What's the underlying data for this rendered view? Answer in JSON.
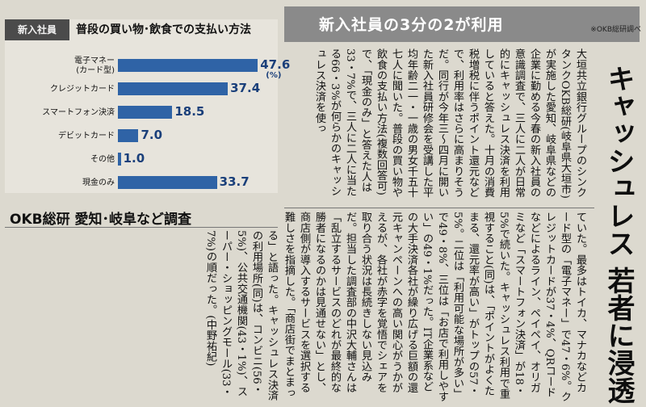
{
  "chart": {
    "tag": "新入社員",
    "title": "普段の買い物･飲食での支払い方法",
    "source": "※OKB総研調べ"
  },
  "chart_data": {
    "type": "bar",
    "orientation": "horizontal",
    "categories": [
      "電子マネー(カード型)",
      "クレジットカード",
      "スマートフォン決済",
      "デビットカード",
      "その他",
      "現金のみ"
    ],
    "category_lines": [
      [
        "電子マネー",
        "(カード型)"
      ],
      [
        "クレジットカード"
      ],
      [
        "スマートフォン決済"
      ],
      [
        "デビットカード"
      ],
      [
        "その他"
      ],
      [
        "現金のみ"
      ]
    ],
    "values": [
      47.6,
      37.4,
      18.5,
      7.0,
      1.0,
      33.7
    ],
    "value_labels": [
      "47.6",
      "37.4",
      "18.5",
      "7.0",
      "1.0",
      "33.7"
    ],
    "unit": "(%)",
    "xlim": [
      0,
      50
    ],
    "bar_color": "#2f63a6",
    "value_color": "#1a3f7a"
  },
  "subhead": "OKB総研 愛知･岐阜など調査",
  "banner": "新入社員の3分の2が利用",
  "headline": "キャッシュレス 若者に浸透",
  "article": {
    "col1": "大垣共立銀行グループのシンクタンクOKB総研(岐阜県大垣市)が実施した愛知、岐阜県などの企業に勤める今春の新入社員の意識調査で、三人に二人が日常的にキャッシュレス決済を利用していると答えた。十月の消費税増税に伴うポイント還元などで、利用率はさらに高まりそうだ。同行が今年三〜四月に開いた新入社員研修会を受講した平均年齢二一・一歳の男女千五十七人に聞いた。普段の買い物や飲食の支払い方法(複数回答可)で、「現金のみ」と答えた人は33・7%で、三人に二人に当たる66・3%が何らかのキャッシュレス決済を使っ",
    "col2": "ていた。最多はトイカ、マナカなどカード型の「電子マネー」で47・6%。クレジットカードが37・4%、QRコードなどによるライン、ペイペイ、オリガミなど「スマートフォン決済」が18・5%で続いた。キャッシュレス利用で重視すること(同)は、「ポイントがよくたまる、還元率が高い」がトップの57・5%。二位は「利用可能な場所が多い」で49・8%、三位は「お店で利用しやすい」の49・1%だった。IT企業系などの大手決済各社が繰り広げる巨額の還元キャンペーンへの高い関心がうかがえるが、各社が赤字を覚悟でシェアを取り合う状況は長続きしない見込みだ。担当した調査部の中沢大輔さんは「乱立するサービスのどれが最終的な勝者になるのかは見通せない」とし、商店側が導入するサービスを選択する難しさを指摘した。「商店街でまとまって一つのサービスを導入して『エリア』をつくることが一定の対策にな",
    "col3": "る」と語った。キャッシュレス決済の利用場所(同)は、コンビニ(56・5%)、公共交通機関(43・1%)、スーパー・ショッピングモール(33・7%)の順だった。(中野祐紀)"
  }
}
